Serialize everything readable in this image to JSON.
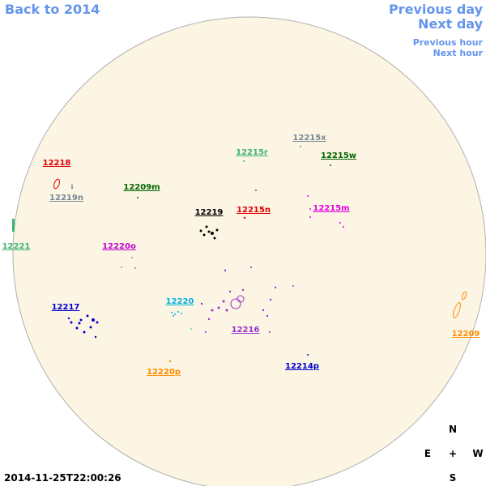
{
  "navigation": {
    "back": "Back to 2014",
    "previous_day": "Previous day",
    "next_day": "Next day",
    "previous_hour": "Previous hour",
    "next_hour": "Next hour"
  },
  "compass": {
    "north": "N",
    "east": "E",
    "center": "+",
    "west": "W",
    "south": "S"
  },
  "timestamp": "2014-11-25T22:00:26",
  "regions": [
    {
      "label": "12215x",
      "color": "#778899"
    },
    {
      "label": "12215r",
      "color": "#3cb371"
    },
    {
      "label": "12215w",
      "color": "#006400"
    },
    {
      "label": "12218",
      "color": "#e00000"
    },
    {
      "label": "12219n",
      "color": "#778899"
    },
    {
      "label": "12209m",
      "color": "#006400"
    },
    {
      "label": "12219",
      "color": "#000000"
    },
    {
      "label": "12215n",
      "color": "#e00000"
    },
    {
      "label": "12215m",
      "color": "#e000e0"
    },
    {
      "label": "12221",
      "color": "#3cb371"
    },
    {
      "label": "12220o",
      "color": "#c000d0"
    },
    {
      "label": "12217",
      "color": "#0000cd"
    },
    {
      "label": "12220",
      "color": "#00b0e0"
    },
    {
      "label": "12216",
      "color": "#9932cc"
    },
    {
      "label": "12209",
      "color": "#ff8c00"
    },
    {
      "label": "12220p",
      "color": "#ff8c00"
    },
    {
      "label": "12214p",
      "color": "#0000cd"
    }
  ]
}
